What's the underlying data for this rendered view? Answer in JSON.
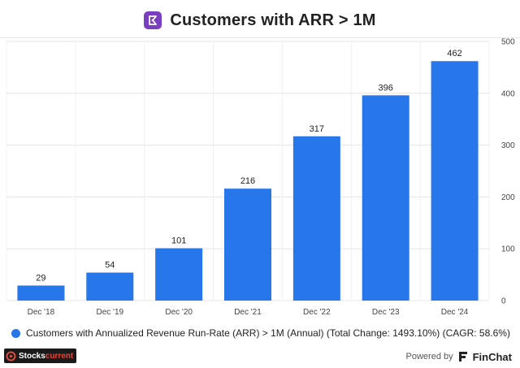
{
  "header": {
    "title": "Customers with ARR > 1M",
    "brand_color": "#7a3fc1",
    "logo_icon": "company-logo-icon"
  },
  "chart_data": {
    "type": "bar",
    "title": "Customers with ARR > 1M",
    "categories": [
      "Dec '18",
      "Dec '19",
      "Dec '20",
      "Dec '21",
      "Dec '22",
      "Dec '23",
      "Dec '24"
    ],
    "series": [
      {
        "name": "Customers with Annualized Revenue Run-Rate (ARR) > 1M (Annual) (Total Change: 1493.10%) (CAGR: 58.6%)",
        "values": [
          29,
          54,
          101,
          216,
          317,
          396,
          462
        ],
        "color": "#2776ea"
      }
    ],
    "yticks": [
      0,
      100,
      200,
      300,
      400,
      500
    ],
    "ylim": [
      0,
      500
    ],
    "y_axis_position": "right",
    "grid": true,
    "data_labels": true,
    "legend_position": "bottom-left"
  },
  "legend": {
    "label": "Customers with Annualized Revenue Run-Rate (ARR) > 1M (Annual) (Total Change: 1493.10%) (CAGR: 58.6%)"
  },
  "footer": {
    "left_brand_prefix": "Stocks",
    "left_brand_suffix": "current",
    "powered_by": "Powered by",
    "brand": "FinChat"
  }
}
